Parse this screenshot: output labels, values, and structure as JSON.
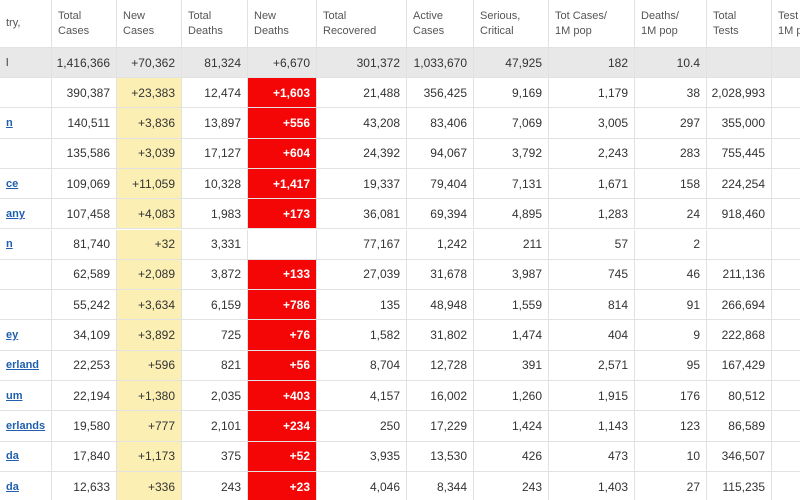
{
  "table": {
    "headers": [
      [
        "try,"
      ],
      [
        "Total",
        "Cases"
      ],
      [
        "New",
        "Cases"
      ],
      [
        "Total",
        "Deaths"
      ],
      [
        "New",
        "Deaths"
      ],
      [
        "Total",
        "Recovered"
      ],
      [
        "Active",
        "Cases"
      ],
      [
        "Serious,",
        "Critical"
      ],
      [
        "Tot Cases/",
        "1M pop"
      ],
      [
        "Deaths/",
        "1M pop"
      ],
      [
        "Total",
        "Tests"
      ],
      [
        "Test",
        "1M p"
      ]
    ],
    "total_row": {
      "label": "l",
      "cells": [
        "1,416,366",
        "+70,362",
        "81,324",
        "+6,670",
        "301,372",
        "1,033,670",
        "47,925",
        "182",
        "10.4",
        null
      ]
    },
    "rows": [
      {
        "label": null,
        "cells": [
          "390,387",
          "+23,383",
          "12,474",
          "+1,603",
          "21,488",
          "356,425",
          "9,169",
          "1,179",
          "38",
          "2,028,993"
        ]
      },
      {
        "label": "n",
        "cells": [
          "140,511",
          "+3,836",
          "13,897",
          "+556",
          "43,208",
          "83,406",
          "7,069",
          "3,005",
          "297",
          "355,000"
        ]
      },
      {
        "label": null,
        "cells": [
          "135,586",
          "+3,039",
          "17,127",
          "+604",
          "24,392",
          "94,067",
          "3,792",
          "2,243",
          "283",
          "755,445"
        ]
      },
      {
        "label": "ce",
        "cells": [
          "109,069",
          "+11,059",
          "10,328",
          "+1,417",
          "19,337",
          "79,404",
          "7,131",
          "1,671",
          "158",
          "224,254"
        ]
      },
      {
        "label": "any",
        "cells": [
          "107,458",
          "+4,083",
          "1,983",
          "+173",
          "36,081",
          "69,394",
          "4,895",
          "1,283",
          "24",
          "918,460"
        ]
      },
      {
        "label": "n",
        "cells": [
          "81,740",
          "+32",
          "3,331",
          null,
          "77,167",
          "1,242",
          "211",
          "57",
          "2",
          null
        ]
      },
      {
        "label": null,
        "cells": [
          "62,589",
          "+2,089",
          "3,872",
          "+133",
          "27,039",
          "31,678",
          "3,987",
          "745",
          "46",
          "211,136"
        ]
      },
      {
        "label": null,
        "cells": [
          "55,242",
          "+3,634",
          "6,159",
          "+786",
          "135",
          "48,948",
          "1,559",
          "814",
          "91",
          "266,694"
        ]
      },
      {
        "label": "ey",
        "cells": [
          "34,109",
          "+3,892",
          "725",
          "+76",
          "1,582",
          "31,802",
          "1,474",
          "404",
          "9",
          "222,868"
        ]
      },
      {
        "label": "erland",
        "cells": [
          "22,253",
          "+596",
          "821",
          "+56",
          "8,704",
          "12,728",
          "391",
          "2,571",
          "95",
          "167,429"
        ]
      },
      {
        "label": "um",
        "cells": [
          "22,194",
          "+1,380",
          "2,035",
          "+403",
          "4,157",
          "16,002",
          "1,260",
          "1,915",
          "176",
          "80,512"
        ]
      },
      {
        "label": "erlands",
        "cells": [
          "19,580",
          "+777",
          "2,101",
          "+234",
          "250",
          "17,229",
          "1,424",
          "1,143",
          "123",
          "86,589"
        ]
      },
      {
        "label": "da",
        "cells": [
          "17,840",
          "+1,173",
          "375",
          "+52",
          "3,935",
          "13,530",
          "426",
          "473",
          "10",
          "346,507"
        ]
      },
      {
        "label": "da",
        "cells": [
          "12,633",
          "+336",
          "243",
          "+23",
          "4,046",
          "8,344",
          "243",
          "1,403",
          "27",
          "115,235"
        ]
      }
    ]
  }
}
